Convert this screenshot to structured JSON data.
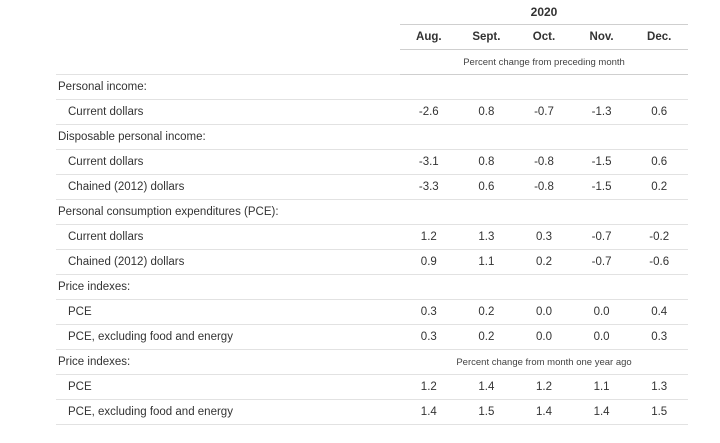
{
  "year": "2020",
  "months": [
    "Aug.",
    "Sept.",
    "Oct.",
    "Nov.",
    "Dec."
  ],
  "unit_mom": "Percent change from preceding month",
  "unit_yoy": "Percent change from month one year ago",
  "rows": [
    {
      "label": "Personal income:",
      "type": "section",
      "values": []
    },
    {
      "label": "Current dollars",
      "type": "sub",
      "values": [
        "-2.6",
        "0.8",
        "-0.7",
        "-1.3",
        "0.6"
      ]
    },
    {
      "label": "Disposable personal income:",
      "type": "section",
      "values": []
    },
    {
      "label": "Current dollars",
      "type": "sub",
      "values": [
        "-3.1",
        "0.8",
        "-0.8",
        "-1.5",
        "0.6"
      ]
    },
    {
      "label": "Chained (2012) dollars",
      "type": "sub",
      "values": [
        "-3.3",
        "0.6",
        "-0.8",
        "-1.5",
        "0.2"
      ]
    },
    {
      "label": "Personal consumption expenditures (PCE):",
      "type": "section",
      "values": []
    },
    {
      "label": "Current dollars",
      "type": "sub",
      "values": [
        "1.2",
        "1.3",
        "0.3",
        "-0.7",
        "-0.2"
      ]
    },
    {
      "label": "Chained (2012) dollars",
      "type": "sub",
      "values": [
        "0.9",
        "1.1",
        "0.2",
        "-0.7",
        "-0.6"
      ]
    },
    {
      "label": "Price indexes:",
      "type": "section",
      "values": []
    },
    {
      "label": "PCE",
      "type": "sub",
      "values": [
        "0.3",
        "0.2",
        "0.0",
        "0.0",
        "0.4"
      ]
    },
    {
      "label": "PCE, excluding food and energy",
      "type": "sub",
      "values": [
        "0.3",
        "0.2",
        "0.0",
        "0.0",
        "0.3"
      ]
    },
    {
      "label": "Price indexes:",
      "type": "section-unit",
      "values": []
    },
    {
      "label": "PCE",
      "type": "sub",
      "values": [
        "1.2",
        "1.4",
        "1.2",
        "1.1",
        "1.3"
      ]
    },
    {
      "label": "PCE, excluding food and energy",
      "type": "sub",
      "values": [
        "1.4",
        "1.5",
        "1.4",
        "1.4",
        "1.5"
      ]
    }
  ]
}
